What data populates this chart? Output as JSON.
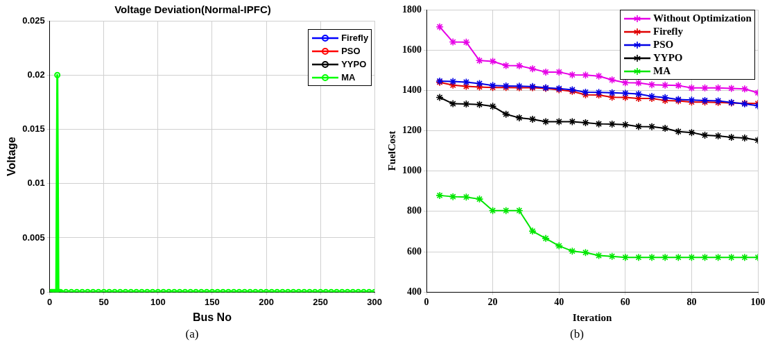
{
  "chart_data": [
    {
      "type": "line",
      "title": "Voltage Deviation(Normal-IPFC)",
      "xlabel": "Bus No",
      "ylabel": "Voltage",
      "annotations": [
        "(a)"
      ],
      "x": [
        1,
        2,
        3,
        4,
        5,
        6,
        7,
        8,
        9,
        10,
        15,
        20,
        25,
        30,
        35,
        40,
        45,
        50,
        55,
        60,
        65,
        70,
        75,
        80,
        85,
        90,
        95,
        100,
        105,
        110,
        115,
        120,
        125,
        130,
        135,
        140,
        145,
        150,
        155,
        160,
        165,
        170,
        175,
        180,
        185,
        190,
        195,
        200,
        205,
        210,
        215,
        220,
        225,
        230,
        235,
        240,
        245,
        250,
        255,
        260,
        265,
        270,
        275,
        280,
        285,
        290,
        295,
        300
      ],
      "series": [
        {
          "name": "Firefly",
          "color": "#0000ff",
          "values": [
            null,
            null,
            null,
            null,
            null,
            null,
            null,
            null,
            null,
            null,
            null,
            null,
            null,
            null,
            null,
            null,
            null,
            null,
            null,
            null,
            null,
            null,
            null,
            null,
            null,
            null,
            null,
            null,
            null,
            null,
            null,
            null,
            null,
            null,
            null,
            null,
            null,
            null,
            null,
            null,
            null,
            null,
            null,
            null,
            null,
            null,
            null,
            null,
            null,
            null,
            null,
            null,
            null,
            null,
            null,
            null,
            null,
            null,
            null,
            null,
            null,
            null,
            null,
            null,
            null,
            null,
            null,
            null
          ]
        },
        {
          "name": "PSO",
          "color": "#ff0000",
          "values": [
            null,
            null,
            null,
            null,
            null,
            null,
            null,
            null,
            null,
            null,
            null,
            null,
            null,
            null,
            null,
            null,
            null,
            null,
            null,
            null,
            null,
            null,
            null,
            null,
            null,
            null,
            null,
            null,
            null,
            null,
            null,
            null,
            null,
            null,
            null,
            null,
            null,
            null,
            null,
            null,
            null,
            null,
            null,
            null,
            null,
            null,
            null,
            null,
            null,
            null,
            null,
            null,
            null,
            null,
            null,
            null,
            null,
            null,
            null,
            null,
            null,
            null,
            null,
            null,
            null,
            null,
            null,
            null
          ]
        },
        {
          "name": "YYPO",
          "color": "#000000",
          "values": [
            null,
            null,
            null,
            null,
            null,
            null,
            null,
            null,
            null,
            null,
            null,
            null,
            null,
            null,
            null,
            null,
            null,
            null,
            null,
            null,
            null,
            null,
            null,
            null,
            null,
            null,
            null,
            null,
            null,
            null,
            null,
            null,
            null,
            null,
            null,
            null,
            null,
            null,
            null,
            null,
            null,
            null,
            null,
            null,
            null,
            null,
            null,
            null,
            null,
            null,
            null,
            null,
            null,
            null,
            null,
            null,
            null,
            null,
            null,
            null,
            null,
            null,
            null,
            null,
            null,
            null,
            null,
            null
          ]
        },
        {
          "name": "MA",
          "color": "#00ff00",
          "values": [
            0,
            0,
            0,
            0,
            0,
            0,
            0.02,
            0,
            0,
            0,
            0,
            0,
            0,
            0,
            0,
            0,
            0,
            0,
            0,
            0,
            0,
            0,
            0,
            0,
            0,
            0,
            0,
            0,
            0,
            0,
            0,
            0,
            0,
            0,
            0,
            0,
            0,
            0,
            0,
            0,
            0,
            0,
            0,
            0,
            0,
            0,
            0,
            0,
            0,
            0,
            0,
            0,
            0,
            0,
            0,
            0,
            0,
            0,
            0,
            0,
            0,
            0,
            0,
            0,
            0,
            0,
            0,
            0
          ]
        }
      ],
      "xlim": [
        0,
        300
      ],
      "xticks": [
        0,
        50,
        100,
        150,
        200,
        250,
        300
      ],
      "ylim": [
        0,
        0.025
      ],
      "yticks": [
        0,
        0.005,
        0.01,
        0.015,
        0.02,
        0.025
      ],
      "grid": true,
      "legend": "top right",
      "marker": "circle",
      "line_style": "solid"
    },
    {
      "type": "line",
      "xlabel": "Iteration",
      "ylabel": "FuelCost",
      "annotations": [
        "(b)"
      ],
      "x": [
        4,
        8,
        12,
        16,
        20,
        24,
        28,
        32,
        36,
        40,
        44,
        48,
        52,
        56,
        60,
        64,
        68,
        72,
        76,
        80,
        84,
        88,
        92,
        96,
        100
      ],
      "series": [
        {
          "name": "Without Optimization",
          "color": "#e600e6",
          "values": [
            1715,
            1640,
            1639,
            1548,
            1544,
            1523,
            1522,
            1507,
            1491,
            1491,
            1477,
            1476,
            1471,
            1452,
            1438,
            1437,
            1428,
            1426,
            1424,
            1412,
            1412,
            1412,
            1410,
            1407,
            1388
          ]
        },
        {
          "name": "Firefly",
          "color": "#e00000",
          "values": [
            1440,
            1426,
            1420,
            1417,
            1414,
            1414,
            1413,
            1413,
            1410,
            1403,
            1395,
            1378,
            1377,
            1366,
            1365,
            1360,
            1360,
            1350,
            1348,
            1342,
            1342,
            1340,
            1338,
            1336,
            1335
          ]
        },
        {
          "name": "PSO",
          "color": "#0000e6",
          "values": [
            1446,
            1444,
            1441,
            1434,
            1424,
            1422,
            1421,
            1419,
            1413,
            1409,
            1403,
            1391,
            1390,
            1388,
            1386,
            1382,
            1370,
            1364,
            1355,
            1352,
            1350,
            1348,
            1340,
            1333,
            1324
          ]
        },
        {
          "name": "YYPO",
          "color": "#000000",
          "values": [
            1365,
            1334,
            1332,
            1330,
            1321,
            1282,
            1264,
            1257,
            1245,
            1245,
            1245,
            1240,
            1234,
            1233,
            1230,
            1221,
            1220,
            1212,
            1196,
            1191,
            1178,
            1174,
            1167,
            1164,
            1153
          ]
        },
        {
          "name": "MA",
          "color": "#00e600",
          "values": [
            879,
            873,
            871,
            861,
            804,
            804,
            804,
            702,
            666,
            629,
            603,
            596,
            581,
            577,
            572,
            572,
            572,
            572,
            572,
            572,
            572,
            572,
            572,
            572,
            572
          ]
        }
      ],
      "xlim": [
        0,
        100
      ],
      "xticks": [
        0,
        20,
        40,
        60,
        80,
        100
      ],
      "ylim": [
        400,
        1800
      ],
      "yticks": [
        400,
        600,
        800,
        1000,
        1200,
        1400,
        1600,
        1800
      ],
      "grid": true,
      "legend": "top right",
      "marker": "cross",
      "line_style": "solid"
    }
  ]
}
